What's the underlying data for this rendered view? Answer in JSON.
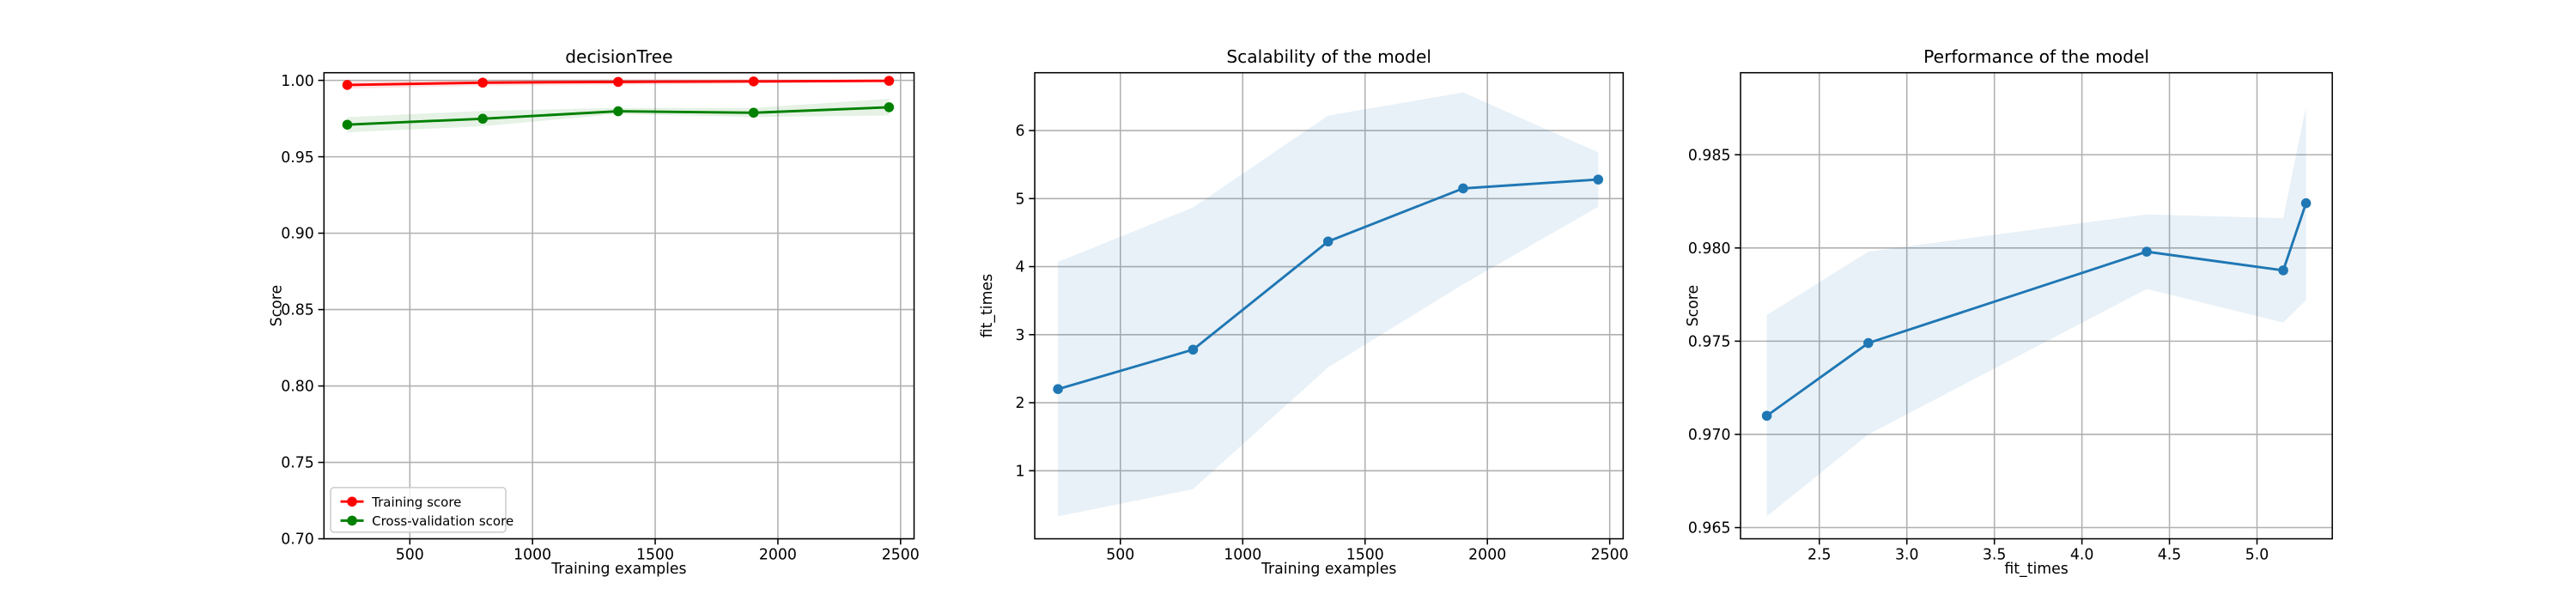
{
  "chart_data": [
    {
      "type": "line",
      "title": "decisionTree",
      "xlabel": "Training examples",
      "ylabel": "Score",
      "xlim": [
        150,
        2555
      ],
      "ylim": [
        0.7,
        1.005
      ],
      "xticks": [
        500,
        1000,
        1500,
        2000,
        2500
      ],
      "yticks": [
        0.7,
        0.75,
        0.8,
        0.85,
        0.9,
        0.95,
        1.0
      ],
      "ytick_decimals": 2,
      "grid": true,
      "legend_position": "lower-left",
      "x": [
        245,
        797,
        1349,
        1901,
        2453
      ],
      "series": [
        {
          "name": "Training score",
          "color": "#ff0000",
          "values": [
            0.997,
            0.9985,
            0.999,
            0.9993,
            0.9997
          ],
          "band_lower": [
            0.9945,
            0.9965,
            0.997,
            0.998,
            0.9988
          ],
          "band_upper": [
            0.9995,
            1.0003,
            1.0006,
            1.0006,
            1.0006
          ],
          "band_color": "#ff0000"
        },
        {
          "name": "Cross-validation score",
          "color": "#008000",
          "values": [
            0.971,
            0.9749,
            0.9798,
            0.9788,
            0.9824
          ],
          "band_lower": [
            0.966,
            0.97,
            0.978,
            0.976,
            0.977
          ],
          "band_upper": [
            0.976,
            0.98,
            0.982,
            0.982,
            0.988
          ],
          "band_color": "#008000"
        }
      ]
    },
    {
      "type": "line",
      "title": "Scalability of the model",
      "xlabel": "Training examples",
      "ylabel": "fit_times",
      "xlim": [
        150,
        2555
      ],
      "ylim": [
        0,
        6.85
      ],
      "xticks": [
        500,
        1000,
        1500,
        2000,
        2500
      ],
      "yticks": [
        1,
        2,
        3,
        4,
        5,
        6
      ],
      "ytick_decimals": 0,
      "grid": true,
      "x": [
        245,
        797,
        1349,
        1901,
        2453
      ],
      "series": [
        {
          "color": "#1f77b4",
          "values": [
            2.2,
            2.78,
            4.37,
            5.15,
            5.28
          ],
          "band_lower": [
            0.33,
            0.73,
            2.52,
            3.74,
            4.88
          ],
          "band_upper": [
            4.07,
            4.87,
            6.22,
            6.56,
            5.68
          ],
          "band_color": "#1f77b4"
        }
      ]
    },
    {
      "type": "line",
      "title": "Performance of the model",
      "xlabel": "fit_times",
      "ylabel": "Score",
      "xlim": [
        2.05,
        5.43
      ],
      "ylim": [
        0.9644,
        0.9894
      ],
      "xticks": [
        2.5,
        3.0,
        3.5,
        4.0,
        4.5,
        5.0
      ],
      "xtick_decimals": 1,
      "yticks": [
        0.965,
        0.97,
        0.975,
        0.98,
        0.985
      ],
      "ytick_decimals": 3,
      "grid": true,
      "x": [
        2.2,
        2.78,
        4.37,
        5.15,
        5.28
      ],
      "series": [
        {
          "color": "#1f77b4",
          "values": [
            0.971,
            0.9749,
            0.9798,
            0.9788,
            0.9824
          ],
          "band_lower": [
            0.9656,
            0.97,
            0.9778,
            0.976,
            0.9772
          ],
          "band_upper": [
            0.9764,
            0.9798,
            0.9818,
            0.9816,
            0.9876
          ],
          "band_color": "#1f77b4"
        }
      ]
    }
  ]
}
